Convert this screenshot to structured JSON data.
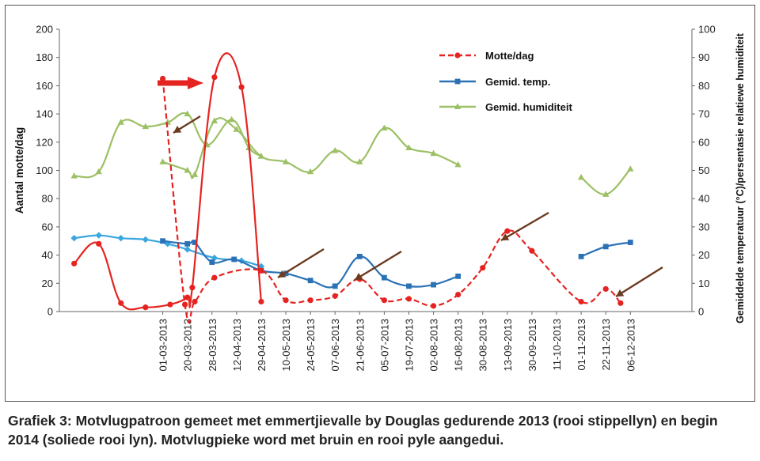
{
  "caption": "Grafiek 3: Motvlugpatroon gemeet met emmertjievalle by Douglas gedurende 2013 (rooi stippellyn) en begin 2014 (soliede rooi lyn). Motvlugpieke word met bruin en rooi pyle aangedui.",
  "chart_data": {
    "type": "line",
    "xlabel": "",
    "ylabel": "Aantal motte/dag",
    "y2label": "Gemiddelde temperatuur (°C)/persentasie relatiewe humiditeit",
    "ylim": [
      0,
      200
    ],
    "y2lim": [
      0,
      100
    ],
    "yticks": [
      0,
      20,
      40,
      60,
      80,
      100,
      120,
      140,
      160,
      180,
      200
    ],
    "y2ticks": [
      0,
      10,
      20,
      30,
      40,
      50,
      60,
      70,
      80,
      90,
      100
    ],
    "grid": false,
    "legend_position": "top-right",
    "x_tick_labels": [
      "01-03-2013",
      "20-03-2013",
      "28-03-2013",
      "12-04-2013",
      "29-04-2013",
      "10-05-2013",
      "24-05-2013",
      "07-06-2013",
      "21-06-2013",
      "05-07-2013",
      "19-07-2013",
      "02-08-2013",
      "16-08-2013",
      "30-08-2013",
      "13-09-2013",
      "30-09-2013",
      "11-10-2013",
      "01-11-2013",
      "22-11-2013",
      "06-12-2013"
    ],
    "xlim": [
      -4.2,
      21.5
    ],
    "colors": {
      "red": "#e52421",
      "blue": "#2a72b5",
      "lightblue": "#3aa6e0",
      "green": "#9cc065",
      "brown": "#6b3a1f"
    },
    "series": [
      {
        "name": "Motte/dag",
        "axis": "left",
        "style": "dashed",
        "color": "#e52421",
        "marker": "circle",
        "x": [
          0,
          0.9,
          1.3,
          2.1,
          4.0,
          5.0,
          6.0,
          7.0,
          8.0,
          9.0,
          10.0,
          11.0,
          12.0,
          13.0,
          14.0,
          15.0,
          17.0,
          18.0,
          18.6
        ],
        "y": [
          165,
          5,
          7,
          24,
          29,
          8,
          8,
          11,
          23,
          8,
          9,
          4,
          12,
          31,
          57,
          43,
          7,
          16,
          6
        ]
      },
      {
        "name": "",
        "axis": "left",
        "style": "solid",
        "color": "#e52421",
        "marker": "circle",
        "x": [
          -3.6,
          -2.6,
          -1.7,
          -0.7,
          0.3,
          1.0,
          1.2,
          2.1,
          3.2,
          4.0
        ],
        "y": [
          34,
          48,
          6,
          3,
          5,
          10,
          17,
          166,
          159,
          7
        ]
      },
      {
        "name": "Gemid. temp.",
        "axis": "right",
        "style": "solid",
        "color": "#2a72b5",
        "marker": "square",
        "x": [
          0,
          1.0,
          1.3,
          2.0,
          2.9,
          4.0,
          5.0,
          6.0,
          7.0,
          8.0,
          9.0,
          10.0,
          11.0,
          12.0
        ],
        "y": [
          25,
          24,
          24.5,
          17.5,
          18.5,
          14.5,
          13.5,
          11,
          9,
          19.5,
          12,
          9,
          9.5,
          12.5
        ]
      },
      {
        "name": "",
        "axis": "right",
        "style": "solid",
        "color": "#3aa6e0",
        "marker": "diamond",
        "x": [
          -3.6,
          -2.6,
          -1.7,
          -0.7,
          0.2,
          1.0,
          2.1,
          3.2,
          4.0
        ],
        "y": [
          26,
          27,
          26,
          25.5,
          24,
          22,
          19,
          18,
          16
        ]
      },
      {
        "name": "",
        "axis": "right",
        "style": "solid",
        "color": "#2a72b5",
        "marker": "square",
        "x": [
          17.0,
          18.0,
          19.0
        ],
        "y": [
          19.5,
          23,
          24.5
        ]
      },
      {
        "name": "Gemid. humiditeit",
        "axis": "right",
        "style": "solid",
        "color": "#9cc065",
        "marker": "triangle",
        "x": [
          0,
          1.0,
          1.3,
          2.1,
          3.0,
          4.0,
          5.0,
          6.0,
          7.0,
          8.0,
          9.0,
          10.0,
          11.0,
          12.0
        ],
        "y": [
          53,
          50,
          48.5,
          67.5,
          64.5,
          55,
          53,
          49.5,
          57,
          53,
          65,
          58,
          56,
          52
        ]
      },
      {
        "name": "",
        "axis": "right",
        "style": "solid",
        "color": "#9cc065",
        "marker": "triangle",
        "x": [
          -3.6,
          -2.6,
          -1.7,
          -0.7,
          0.2,
          1.0,
          1.8,
          2.8,
          3.5,
          4.0
        ],
        "y": [
          48,
          49.5,
          67,
          65.5,
          67,
          70,
          59,
          68,
          58,
          55
        ]
      },
      {
        "name": "",
        "axis": "right",
        "style": "solid",
        "color": "#9cc065",
        "marker": "triangle",
        "x": [
          17.0,
          18.0,
          19.0
        ],
        "y": [
          47.5,
          41.5,
          50.5
        ]
      }
    ]
  }
}
